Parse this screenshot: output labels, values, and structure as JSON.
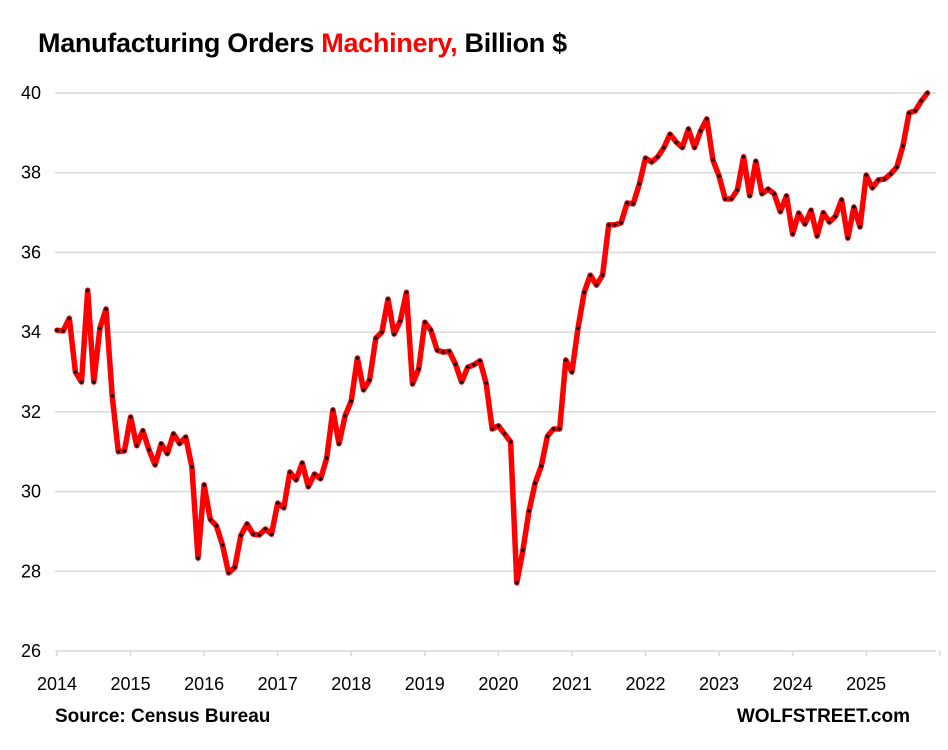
{
  "chart_data": {
    "type": "line",
    "title": {
      "part1": "Manufacturing Orders ",
      "part2_highlight": "Machinery,",
      "part3": " Billion $"
    },
    "xlabel": "",
    "ylabel": "",
    "ylim": [
      26,
      40
    ],
    "yticks": [
      "26",
      "28",
      "30",
      "32",
      "34",
      "36",
      "38",
      "40"
    ],
    "xticks": [
      "2014",
      "2015",
      "2016",
      "2017",
      "2018",
      "2019",
      "2020",
      "2021",
      "2022",
      "2023",
      "2024",
      "2025"
    ],
    "x_start": "2014-01",
    "frequency": "monthly",
    "grid": "horizontal",
    "legend": "none",
    "colors": {
      "line": "#ff0000",
      "marker": "#000000",
      "grid": "#d9d9d9",
      "highlight": "#ff0000"
    },
    "series": [
      {
        "name": "Machinery orders",
        "values": [
          34.05,
          34.03,
          34.35,
          33.0,
          32.75,
          35.05,
          32.75,
          34.1,
          34.58,
          32.4,
          31.0,
          31.02,
          31.87,
          31.15,
          31.53,
          31.05,
          30.67,
          31.2,
          30.95,
          31.45,
          31.2,
          31.37,
          30.62,
          28.33,
          30.17,
          29.3,
          29.14,
          28.66,
          27.96,
          28.1,
          28.9,
          29.19,
          28.93,
          28.91,
          29.06,
          28.93,
          29.71,
          29.59,
          30.49,
          30.29,
          30.72,
          30.12,
          30.44,
          30.32,
          30.84,
          32.05,
          31.2,
          31.9,
          32.27,
          33.35,
          32.55,
          32.8,
          33.85,
          34.0,
          34.83,
          33.95,
          34.28,
          35.0,
          32.7,
          33.08,
          34.25,
          34.05,
          33.55,
          33.5,
          33.52,
          33.2,
          32.75,
          33.12,
          33.18,
          33.28,
          32.72,
          31.57,
          31.65,
          31.45,
          31.25,
          27.71,
          28.53,
          29.51,
          30.21,
          30.64,
          31.39,
          31.57,
          31.57,
          33.3,
          33.0,
          34.1,
          35.0,
          35.43,
          35.18,
          35.43,
          36.69,
          36.69,
          36.74,
          37.24,
          37.22,
          37.72,
          38.37,
          38.27,
          38.4,
          38.63,
          38.97,
          38.77,
          38.63,
          39.1,
          38.63,
          39.05,
          39.35,
          38.32,
          37.92,
          37.34,
          37.34,
          37.57,
          38.4,
          37.42,
          38.29,
          37.47,
          37.59,
          37.47,
          37.02,
          37.42,
          36.46,
          36.99,
          36.71,
          37.06,
          36.41,
          37.0,
          36.76,
          36.91,
          37.32,
          36.36,
          37.14,
          36.64,
          37.94,
          37.62,
          37.82,
          37.84,
          37.97,
          38.14,
          38.67,
          39.5,
          39.55,
          39.8,
          40.0
        ]
      }
    ]
  },
  "footer": {
    "source": "Source: Census Bureau",
    "brand": "WOLFSTREET.com"
  }
}
